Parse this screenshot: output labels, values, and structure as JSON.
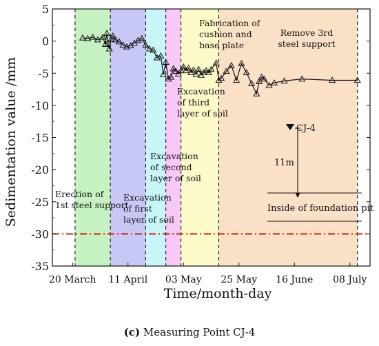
{
  "caption": {
    "label": "(c)",
    "text": "Measuring Point CJ-4"
  },
  "colors": {
    "stage_fills": [
      "#c6f2c2",
      "#c8c8f6",
      "#c8f6f8",
      "#f8c8f6",
      "#fbfac8",
      "#fbe0c8"
    ],
    "threshold": "#cc2200",
    "line": "#111111"
  },
  "chart_data": {
    "type": "line",
    "xlabel": "Time/month-day",
    "ylabel": "Sedimentation value /mm",
    "ylim": [
      -35,
      5
    ],
    "yticks": [
      5,
      0,
      -5,
      -10,
      -15,
      -20,
      -25,
      -30,
      -35
    ],
    "xlim": [
      0,
      126
    ],
    "xticks": [
      {
        "day": 8,
        "label": "20 March"
      },
      {
        "day": 30,
        "label": "11 April"
      },
      {
        "day": 52,
        "label": "03 May"
      },
      {
        "day": 74,
        "label": "25 May"
      },
      {
        "day": 96,
        "label": "16 June"
      },
      {
        "day": 118,
        "label": "08 July"
      }
    ],
    "grid": false,
    "threshold": {
      "value": -30,
      "style": "dash-dot"
    },
    "stages": [
      {
        "start": 9,
        "end": 23,
        "label_lines": [
          "Erection of",
          "1st steel support"
        ]
      },
      {
        "start": 23,
        "end": 37,
        "label_lines": [
          "Excavation",
          "of first",
          "layer of soil"
        ]
      },
      {
        "start": 37,
        "end": 45,
        "label_lines": [
          "Excavation",
          "of second",
          "layer of soil"
        ]
      },
      {
        "start": 45,
        "end": 51,
        "label_lines": [
          "Excavation",
          "of third",
          "layer of soil"
        ]
      },
      {
        "start": 51,
        "end": 66,
        "label_lines": [
          "Fabrication of",
          "cushion and",
          "base plate"
        ]
      },
      {
        "start": 66,
        "end": 121,
        "label_lines": [
          "Remove 3rd",
          "steel support"
        ]
      }
    ],
    "series": [
      {
        "marker": "open-triangle",
        "x": [
          12,
          14,
          16,
          18,
          20,
          21,
          21.6,
          22,
          22.6,
          23.3,
          24,
          25,
          26.5,
          28,
          29.5,
          31,
          32.5,
          34,
          35.5,
          37,
          38.5,
          40,
          41.5,
          43,
          44,
          45,
          46,
          47,
          48,
          49,
          50,
          51,
          52,
          53,
          54,
          55,
          56,
          57,
          58,
          59,
          60,
          61,
          62,
          63,
          65,
          66,
          67,
          69,
          71,
          73,
          75,
          77,
          79,
          81,
          82,
          83,
          84,
          86,
          88,
          92,
          99,
          111,
          121
        ],
        "y": [
          0.5,
          0.4,
          0.6,
          0.2,
          0.6,
          -0.5,
          1.2,
          -0.3,
          -1.2,
          0.3,
          0.8,
          0.2,
          -0.1,
          -0.6,
          -0.9,
          -0.7,
          -0.3,
          0.1,
          0.4,
          -0.6,
          -1.2,
          -1.4,
          -2.6,
          -2.3,
          -5.2,
          -3.3,
          -5.9,
          -5.6,
          -4.3,
          -4.7,
          -5.1,
          -4.6,
          -4.0,
          -4.6,
          -4.2,
          -4.9,
          -4.5,
          -5.2,
          -4.4,
          -5.3,
          -4.9,
          -4.6,
          -4.9,
          -4.4,
          -3.4,
          -6.1,
          -5.8,
          -4.7,
          -3.8,
          -6.1,
          -3.5,
          -4.9,
          -6.6,
          -8.2,
          -6.3,
          -5.6,
          -5.9,
          -6.9,
          -6.5,
          -6.2,
          -5.9,
          -6.1,
          -6.1
        ]
      }
    ],
    "inset": {
      "point_label": "CJ-4",
      "depth_label": "11m",
      "bottom_label": "Inside of foundation pit"
    }
  }
}
